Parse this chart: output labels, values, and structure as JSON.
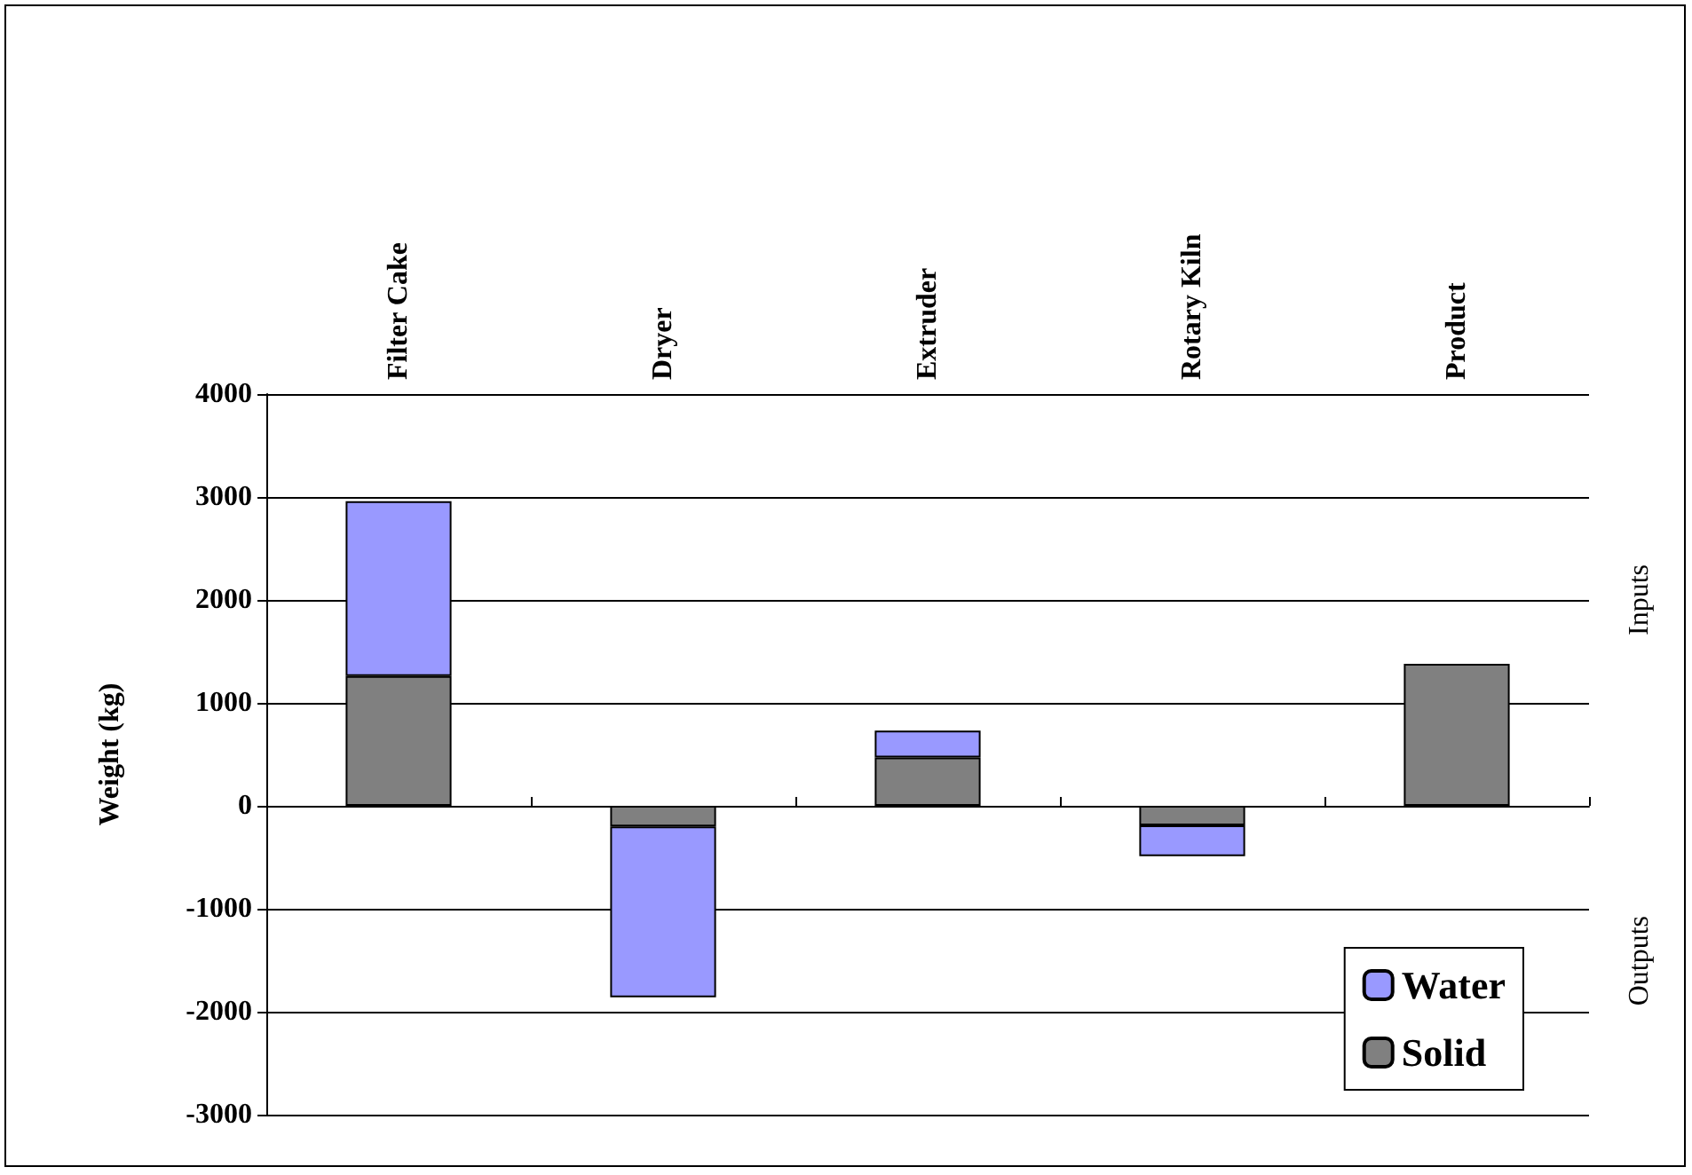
{
  "chart_data": {
    "type": "bar",
    "stacked": true,
    "ylabel": "Weight (kg)",
    "categories": [
      "Filter Cake",
      "Dryer",
      "Extruder",
      "Rotary Kiln",
      "Product"
    ],
    "series": [
      {
        "name": "Solid",
        "color": "#808080",
        "values": [
          1260,
          -200,
          470,
          -190,
          1380
        ]
      },
      {
        "name": "Water",
        "color": "#9999ff",
        "values": [
          1700,
          -1660,
          260,
          -300,
          null
        ]
      }
    ],
    "ylim": [
      -3000,
      4000
    ],
    "yticks": [
      -3000,
      -2000,
      -1000,
      0,
      1000,
      2000,
      3000,
      4000
    ],
    "grid": "y",
    "legend": "bottom right",
    "annotations": [
      "Inputs",
      "Outputs"
    ]
  }
}
